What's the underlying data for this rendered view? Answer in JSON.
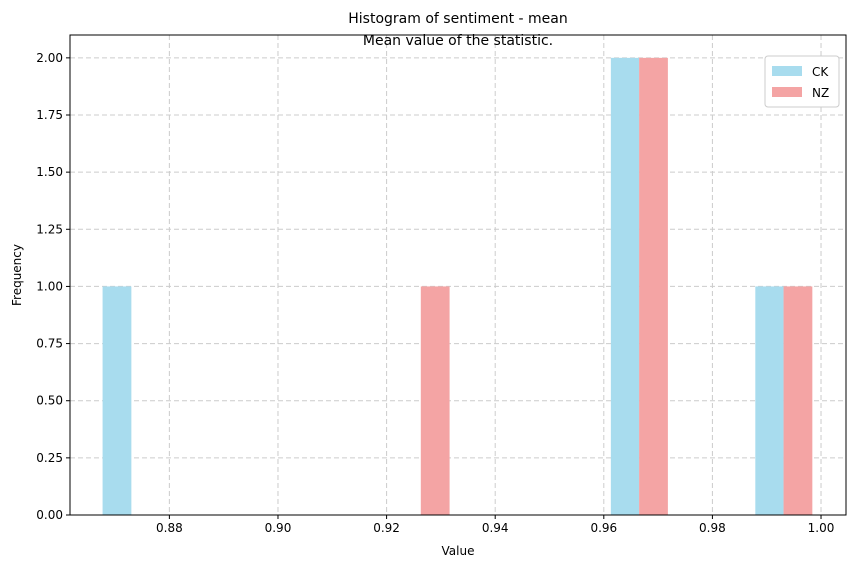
{
  "chart_data": {
    "type": "bar",
    "title": "Histogram of sentiment - mean",
    "subtitle": "Mean value of the statistic.",
    "xlabel": "Value",
    "ylabel": "Frequency",
    "xlim": [
      0.8617,
      1.0046
    ],
    "ylim": [
      0,
      2.1
    ],
    "xticks": [
      "0.88",
      "0.90",
      "0.92",
      "0.94",
      "0.96",
      "0.98",
      "1.00"
    ],
    "xtick_values": [
      0.88,
      0.9,
      0.92,
      0.94,
      0.96,
      0.98,
      1.0
    ],
    "yticks": [
      "0.00",
      "0.25",
      "0.50",
      "0.75",
      "1.00",
      "1.25",
      "1.50",
      "1.75",
      "2.00"
    ],
    "ytick_values": [
      0,
      0.25,
      0.5,
      0.75,
      1.0,
      1.25,
      1.5,
      1.75,
      2.0
    ],
    "grid": true,
    "legend_position": "top-right",
    "series": [
      {
        "name": "CK",
        "color": "#a8dcee",
        "bars": [
          {
            "x0": 0.8677,
            "x1": 0.873,
            "count": 1
          },
          {
            "x0": 0.9613,
            "x1": 0.9665,
            "count": 2
          },
          {
            "x0": 0.9879,
            "x1": 0.9931,
            "count": 1
          }
        ]
      },
      {
        "name": "NZ",
        "color": "#f4a4a4",
        "bars": [
          {
            "x0": 0.9263,
            "x1": 0.9316,
            "count": 1
          },
          {
            "x0": 0.9665,
            "x1": 0.9718,
            "count": 2
          },
          {
            "x0": 0.9931,
            "x1": 0.9984,
            "count": 1
          }
        ]
      }
    ]
  }
}
